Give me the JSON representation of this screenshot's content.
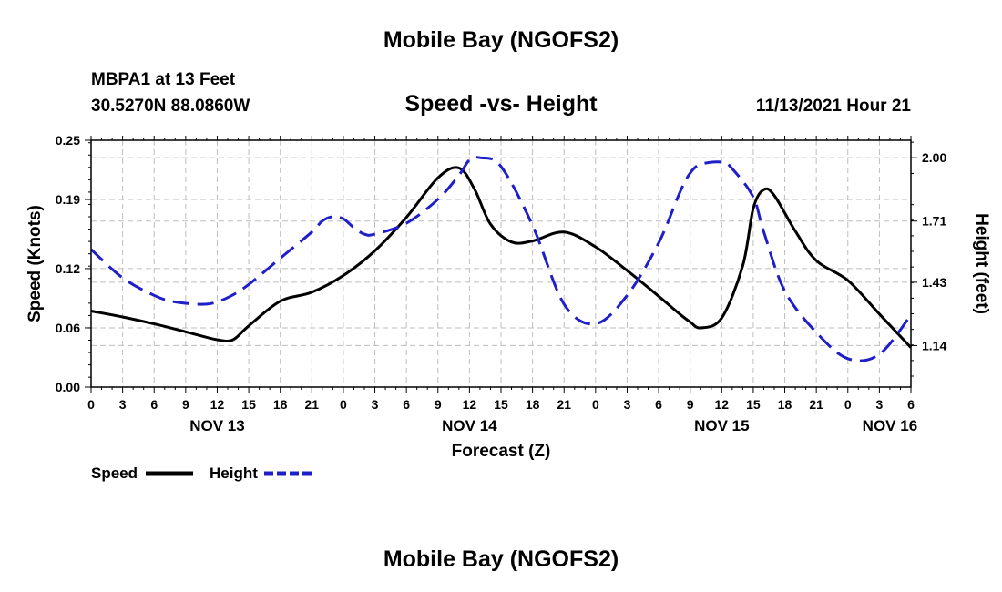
{
  "header": {
    "title": "Mobile Bay (NGOFS2)",
    "station": "MBPA1 at 13 Feet",
    "coordinates": "30.5270N  88.0860W",
    "subtitle": "Speed -vs- Height",
    "datetime": "11/13/2021 Hour 21"
  },
  "footer": {
    "title": "Mobile Bay (NGOFS2)"
  },
  "chart_data": {
    "type": "line",
    "title": "Speed -vs- Height",
    "xlabel": "Forecast (Z)",
    "ylabel": "Speed (Knots)",
    "y2label": "Height (feet)",
    "x_unit": "hours since NOV 13 00Z",
    "xlim": [
      0,
      78
    ],
    "ylim": [
      0,
      0.25
    ],
    "y2lim": [
      0.95,
      2.08
    ],
    "x_ticks": [
      0,
      3,
      6,
      9,
      12,
      15,
      18,
      21,
      24,
      27,
      30,
      33,
      36,
      39,
      42,
      45,
      48,
      51,
      54,
      57,
      60,
      63,
      66,
      69,
      72,
      75,
      78
    ],
    "x_tick_labels": [
      "0",
      "3",
      "6",
      "9",
      "12",
      "15",
      "18",
      "21",
      "0",
      "3",
      "6",
      "9",
      "12",
      "15",
      "18",
      "21",
      "0",
      "3",
      "6",
      "9",
      "12",
      "15",
      "18",
      "21",
      "0",
      "3",
      "6"
    ],
    "date_labels": [
      {
        "hour": 12,
        "label": "NOV 13"
      },
      {
        "hour": 36,
        "label": "NOV 14"
      },
      {
        "hour": 60,
        "label": "NOV 15"
      },
      {
        "hour": 76,
        "label": "NOV 16"
      }
    ],
    "y_ticks": [
      0.0,
      0.06,
      0.12,
      0.19,
      0.25
    ],
    "y_tick_labels": [
      "0.00",
      "0.06",
      "0.12",
      "0.19",
      "0.25"
    ],
    "y2_ticks": [
      1.14,
      1.43,
      1.71,
      2.0
    ],
    "y2_tick_labels": [
      "1.14",
      "1.43",
      "1.71",
      "2.00"
    ],
    "grid": true,
    "legend_position": "bottom-left",
    "series": [
      {
        "name": "Speed",
        "axis": "left",
        "color": "#000000",
        "dash": "solid",
        "x": [
          0,
          3,
          6,
          9,
          12,
          13.5,
          15,
          18,
          21,
          24,
          27,
          30,
          33,
          35,
          36.5,
          38,
          40,
          42,
          45,
          48,
          51,
          54,
          56,
          57,
          58,
          60,
          62,
          63,
          64,
          65,
          67,
          69,
          72,
          75,
          78
        ],
        "y": [
          0.077,
          0.071,
          0.064,
          0.056,
          0.048,
          0.048,
          0.062,
          0.087,
          0.096,
          0.113,
          0.138,
          0.172,
          0.212,
          0.222,
          0.2,
          0.165,
          0.147,
          0.148,
          0.157,
          0.142,
          0.118,
          0.092,
          0.074,
          0.066,
          0.06,
          0.07,
          0.123,
          0.181,
          0.2,
          0.194,
          0.158,
          0.128,
          0.108,
          0.074,
          0.04
        ]
      },
      {
        "name": "Height",
        "axis": "right",
        "color": "#1f1fc9",
        "dash": "dashed",
        "x": [
          0,
          3,
          6,
          8,
          11,
          13,
          15,
          18,
          21,
          22,
          23,
          24,
          25,
          26,
          27,
          30,
          33,
          35,
          36,
          37,
          39,
          42,
          45,
          48,
          51,
          54,
          56,
          57,
          58,
          60,
          61,
          63,
          64,
          66,
          69,
          72,
          75,
          78
        ],
        "y": [
          1.58,
          1.45,
          1.37,
          1.34,
          1.33,
          1.36,
          1.42,
          1.54,
          1.66,
          1.71,
          1.73,
          1.72,
          1.68,
          1.65,
          1.65,
          1.7,
          1.81,
          1.92,
          1.99,
          2.0,
          1.96,
          1.69,
          1.33,
          1.24,
          1.37,
          1.61,
          1.84,
          1.93,
          1.97,
          1.98,
          1.95,
          1.82,
          1.66,
          1.39,
          1.2,
          1.08,
          1.1,
          1.28
        ]
      }
    ]
  }
}
